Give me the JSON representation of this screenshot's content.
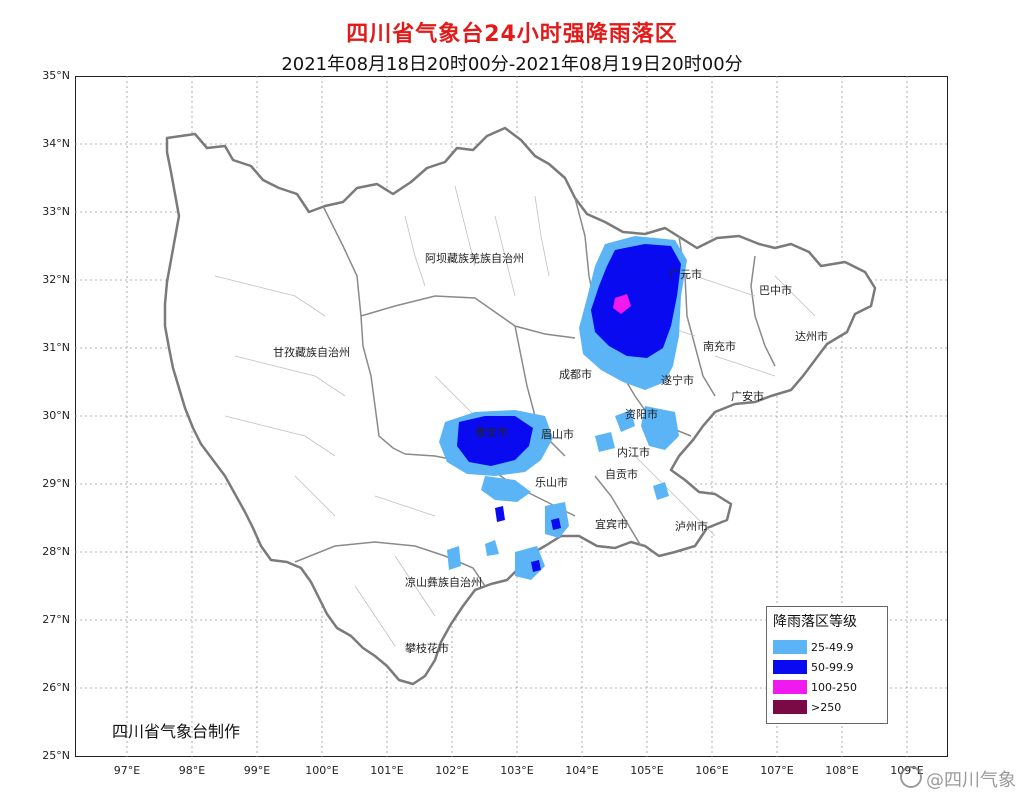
{
  "header": {
    "title": "四川省气象台24小时强降雨落区",
    "subtitle": "2021年08月18日20时00分-2021年08月19日20时00分"
  },
  "axes": {
    "y_labels": [
      "35°N",
      "34°N",
      "33°N",
      "32°N",
      "31°N",
      "30°N",
      "29°N",
      "28°N",
      "27°N",
      "26°N",
      "25°N"
    ],
    "x_labels": [
      "97°E",
      "98°E",
      "99°E",
      "100°E",
      "101°E",
      "102°E",
      "103°E",
      "104°E",
      "105°E",
      "106°E",
      "107°E",
      "108°E",
      "109°E"
    ]
  },
  "cities": [
    {
      "name": "阿坝藏族羌族自治州"
    },
    {
      "name": "甘孜藏族自治州"
    },
    {
      "name": "成都市"
    },
    {
      "name": "广元市"
    },
    {
      "name": "巴中市"
    },
    {
      "name": "达州市"
    },
    {
      "name": "南充市"
    },
    {
      "name": "遂宁市"
    },
    {
      "name": "广安市"
    },
    {
      "name": "资阳市"
    },
    {
      "name": "眉山市"
    },
    {
      "name": "雅安市"
    },
    {
      "name": "内江市"
    },
    {
      "name": "乐山市"
    },
    {
      "name": "自贡市"
    },
    {
      "name": "宜宾市"
    },
    {
      "name": "泸州市"
    },
    {
      "name": "凉山彝族自治州"
    },
    {
      "name": "攀枝花市"
    }
  ],
  "legend": {
    "title": "降雨落区等级",
    "items": [
      {
        "label": "25-49.9",
        "color": "#5ab4f5"
      },
      {
        "label": "50-99.9",
        "color": "#0a0af0"
      },
      {
        "label": "100-250",
        "color": "#f01af0"
      },
      {
        "label": ">250",
        "color": "#7a0a46"
      }
    ]
  },
  "footer": {
    "producer": "四川省气象台制作",
    "watermark": "@四川气象"
  },
  "colors": {
    "title": "#e11a1a",
    "province_border": "#7a7a7a",
    "county_border": "#bbbbbb",
    "grid": "#9a9a9a"
  }
}
